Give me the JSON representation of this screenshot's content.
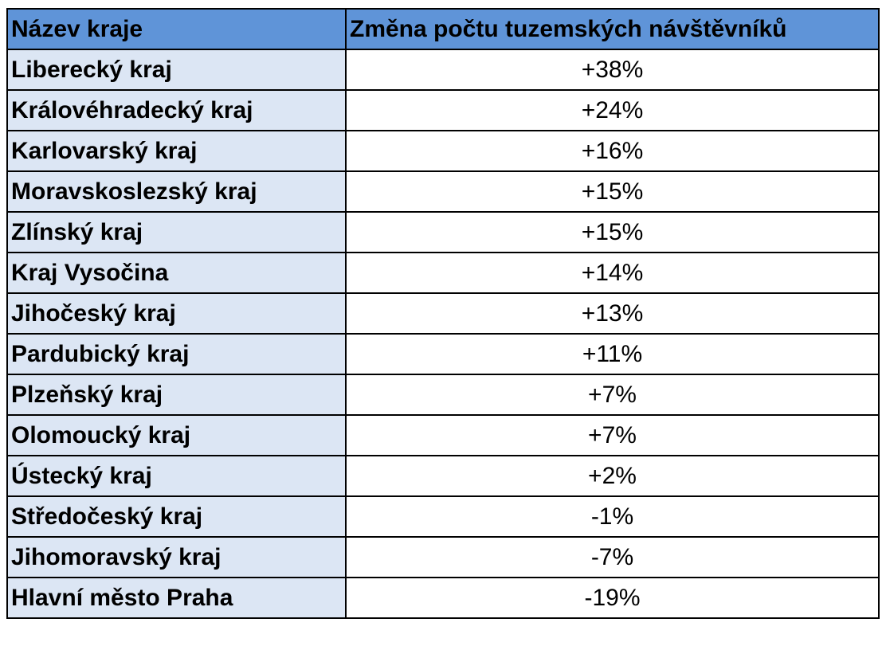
{
  "table": {
    "header": [
      "Název kraje",
      "Změna počtu tuzemských návštěvníků"
    ],
    "rows": [
      [
        "Liberecký kraj",
        "+38%"
      ],
      [
        "Královéhradecký kraj",
        "+24%"
      ],
      [
        "Karlovarský kraj",
        "+16%"
      ],
      [
        "Moravskoslezský kraj",
        "+15%"
      ],
      [
        "Zlínský kraj",
        "+15%"
      ],
      [
        "Kraj Vysočina",
        "+14%"
      ],
      [
        "Jihočeský kraj",
        "+13%"
      ],
      [
        "Pardubický kraj",
        "+11%"
      ],
      [
        "Plzeňský kraj",
        "+7%"
      ],
      [
        "Olomoucký kraj",
        "+7%"
      ],
      [
        "Ústecký kraj",
        "+2%"
      ],
      [
        "Středočeský kraj",
        "-1%"
      ],
      [
        "Jihomoravský kraj",
        "-7%"
      ],
      [
        "Hlavní město Praha",
        "-19%"
      ]
    ]
  }
}
